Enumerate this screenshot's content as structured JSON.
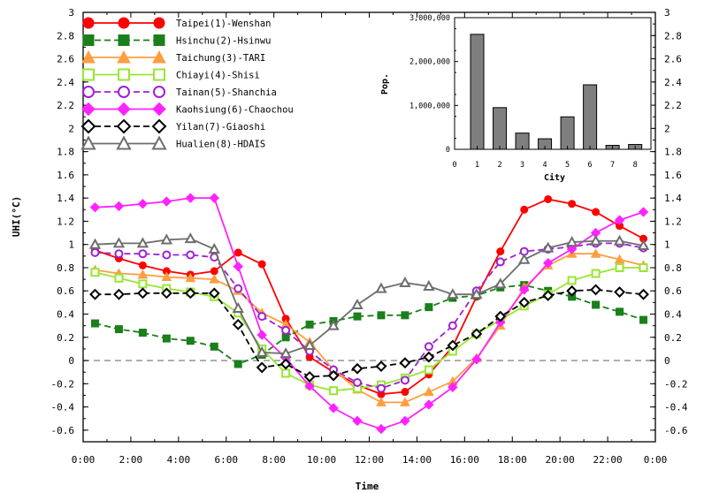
{
  "chart_data": [
    {
      "type": "line",
      "xlabel": "Time",
      "ylabel": "UHI(°C)",
      "x": [
        0.5,
        1.5,
        2.5,
        3.5,
        4.5,
        5.5,
        6.5,
        7.5,
        8.5,
        9.5,
        10.5,
        11.5,
        12.5,
        13.5,
        14.5,
        15.5,
        16.5,
        17.5,
        18.5,
        19.5,
        20.5,
        21.5,
        22.5,
        23.5
      ],
      "xlim": [
        0,
        24
      ],
      "ylim": [
        -0.7,
        3.0
      ],
      "xtick_labels": [
        "0:00",
        "2:00",
        "4:00",
        "6:00",
        "8:00",
        "10:00",
        "12:00",
        "14:00",
        "16:00",
        "18:00",
        "20:00",
        "22:00",
        "0:00"
      ],
      "ytick_labels": [
        "-0.6",
        "-0.4",
        "-0.2",
        "0",
        "0.2",
        "0.4",
        "0.6",
        "0.8",
        "1",
        "1.2",
        "1.4",
        "1.6",
        "1.8",
        "2",
        "2.2",
        "2.4",
        "2.6",
        "2.8",
        "3"
      ],
      "reference_line_y": 0,
      "grid": false,
      "legend_position": "top-left",
      "series": [
        {
          "name": "Taipei(1)-Wenshan",
          "color": "#ff0000",
          "marker": "circle",
          "fill": true,
          "dash": false,
          "values": [
            0.95,
            0.88,
            0.82,
            0.77,
            0.74,
            0.77,
            0.93,
            0.83,
            0.36,
            0.03,
            -0.1,
            -0.21,
            -0.29,
            -0.27,
            -0.12,
            0.12,
            0.55,
            0.94,
            1.3,
            1.39,
            1.35,
            1.28,
            1.16,
            1.05
          ]
        },
        {
          "name": "Hsinchu(2)-Hsinwu",
          "color": "#1b7f1b",
          "marker": "square",
          "fill": true,
          "dash": true,
          "values": [
            0.32,
            0.27,
            0.24,
            0.19,
            0.17,
            0.12,
            -0.03,
            0.05,
            0.2,
            0.31,
            0.34,
            0.38,
            0.39,
            0.39,
            0.46,
            0.54,
            0.56,
            0.63,
            0.65,
            0.6,
            0.55,
            0.48,
            0.42,
            0.35
          ]
        },
        {
          "name": "Taichung(3)-TARI",
          "color": "#ff9e40",
          "marker": "triangle",
          "fill": true,
          "dash": false,
          "values": [
            0.78,
            0.75,
            0.74,
            0.72,
            0.71,
            0.7,
            0.6,
            0.41,
            0.31,
            0.16,
            -0.08,
            -0.25,
            -0.36,
            -0.36,
            -0.27,
            -0.18,
            0.02,
            0.3,
            0.63,
            0.82,
            0.92,
            0.92,
            0.87,
            0.82
          ]
        },
        {
          "name": "Chiayi(4)-Shisi",
          "color": "#99e632",
          "marker": "square",
          "fill": false,
          "dash": false,
          "values": [
            0.76,
            0.71,
            0.66,
            0.62,
            0.59,
            0.55,
            0.41,
            0.1,
            -0.11,
            -0.21,
            -0.26,
            -0.24,
            -0.21,
            -0.15,
            -0.08,
            0.08,
            0.23,
            0.35,
            0.47,
            0.57,
            0.69,
            0.75,
            0.8,
            0.8
          ]
        },
        {
          "name": "Tainan(5)-Shanchia",
          "color": "#9d22d4",
          "marker": "circle",
          "fill": false,
          "dash": true,
          "values": [
            0.93,
            0.92,
            0.92,
            0.91,
            0.91,
            0.89,
            0.62,
            0.38,
            0.26,
            0.08,
            -0.08,
            -0.19,
            -0.24,
            -0.17,
            0.12,
            0.3,
            0.6,
            0.85,
            0.94,
            0.96,
            0.98,
            1.01,
            1.01,
            0.97
          ]
        },
        {
          "name": "Kaohsiung(6)-Chaochou",
          "color": "#ff22ff",
          "marker": "diamond",
          "fill": true,
          "dash": false,
          "values": [
            1.32,
            1.33,
            1.35,
            1.37,
            1.4,
            1.4,
            0.81,
            0.22,
            0.02,
            -0.22,
            -0.41,
            -0.52,
            -0.59,
            -0.52,
            -0.38,
            -0.23,
            0.01,
            0.33,
            0.61,
            0.84,
            0.96,
            1.1,
            1.21,
            1.28
          ]
        },
        {
          "name": "Yilan(7)-Giaoshi",
          "color": "#000000",
          "marker": "diamond",
          "fill": false,
          "dash": true,
          "values": [
            0.57,
            0.57,
            0.58,
            0.58,
            0.58,
            0.58,
            0.31,
            -0.06,
            -0.03,
            -0.14,
            -0.13,
            -0.07,
            -0.05,
            -0.02,
            0.03,
            0.13,
            0.23,
            0.38,
            0.5,
            0.56,
            0.6,
            0.61,
            0.59,
            0.57
          ]
        },
        {
          "name": "Hualien(8)-HDAIS",
          "color": "#6e6e6e",
          "marker": "triangle",
          "fill": false,
          "dash": false,
          "values": [
            1.0,
            1.01,
            1.01,
            1.04,
            1.05,
            0.96,
            0.45,
            0.07,
            0.06,
            0.13,
            0.3,
            0.48,
            0.62,
            0.67,
            0.64,
            0.57,
            0.57,
            0.66,
            0.87,
            0.97,
            1.02,
            1.03,
            1.03,
            0.99
          ]
        }
      ]
    },
    {
      "type": "bar",
      "xlabel": "City",
      "ylabel": "Pop.",
      "categories": [
        "1",
        "2",
        "3",
        "4",
        "5",
        "6",
        "7",
        "8"
      ],
      "values": [
        2620000,
        950000,
        370000,
        240000,
        740000,
        1470000,
        90000,
        110000
      ],
      "xlim": [
        0,
        8.7
      ],
      "ylim": [
        0,
        3000000
      ],
      "xtick_labels": [
        "0",
        "1",
        "2",
        "3",
        "4",
        "5",
        "6",
        "7",
        "8"
      ],
      "ytick_labels": [
        "0",
        "1,000,000",
        "2,000,000",
        "3,000,000"
      ],
      "bar_color": "#7f7f7f"
    }
  ]
}
